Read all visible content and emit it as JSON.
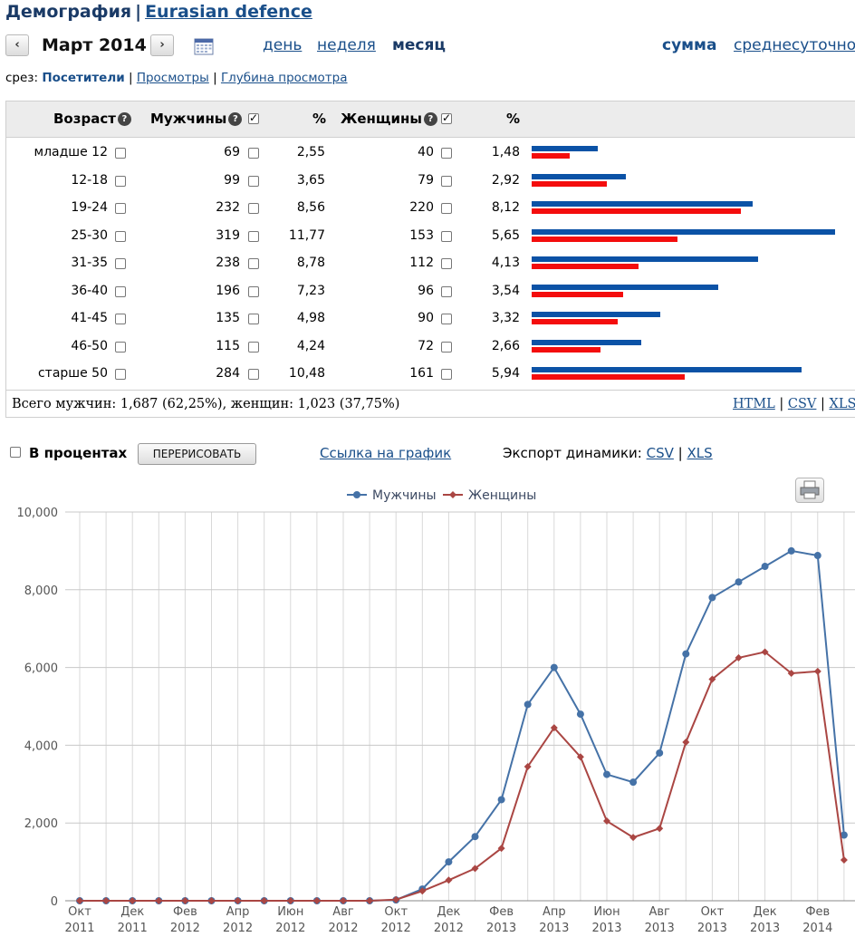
{
  "header": {
    "section": "Демография",
    "separator": "|",
    "site": "Eurasian defence"
  },
  "period": {
    "prev_label": "‹",
    "next_label": "›",
    "label": "Март 2014",
    "granularity": [
      "день",
      "неделя",
      "месяц"
    ],
    "active_granularity": "месяц",
    "modes": [
      "сумма",
      "среднесуточно"
    ],
    "active_mode": "сумма"
  },
  "slice": {
    "label": "срез:",
    "current": "Посетители",
    "links": [
      "Просмотры",
      "Глубина просмотра"
    ],
    "sep": "|"
  },
  "table": {
    "headers": {
      "age": "Возраст",
      "men": "Мужчины",
      "men_pct": "%",
      "women": "Женщины",
      "women_pct": "%"
    },
    "rows": [
      {
        "age": "младше 12",
        "men": "69",
        "men_pct": "2,55",
        "women": "40",
        "women_pct": "1,48"
      },
      {
        "age": "12-18",
        "men": "99",
        "men_pct": "3,65",
        "women": "79",
        "women_pct": "2,92"
      },
      {
        "age": "19-24",
        "men": "232",
        "men_pct": "8,56",
        "women": "220",
        "women_pct": "8,12"
      },
      {
        "age": "25-30",
        "men": "319",
        "men_pct": "11,77",
        "women": "153",
        "women_pct": "5,65"
      },
      {
        "age": "31-35",
        "men": "238",
        "men_pct": "8,78",
        "women": "112",
        "women_pct": "4,13"
      },
      {
        "age": "36-40",
        "men": "196",
        "men_pct": "7,23",
        "women": "96",
        "women_pct": "3,54"
      },
      {
        "age": "41-45",
        "men": "135",
        "men_pct": "4,98",
        "women": "90",
        "women_pct": "3,32"
      },
      {
        "age": "46-50",
        "men": "115",
        "men_pct": "4,24",
        "women": "72",
        "women_pct": "2,66"
      },
      {
        "age": "старше 50",
        "men": "284",
        "men_pct": "10,48",
        "women": "161",
        "women_pct": "5,94"
      }
    ],
    "totals": "Всего мужчин: 1,687 (62,25%), женщин: 1,023 (37,75%)",
    "exports": [
      "HTML",
      "CSV",
      "XLS"
    ],
    "sep": "|"
  },
  "controls": {
    "percent_label": "В процентах",
    "redraw_label": "ПЕРЕРИСОВАТЬ",
    "chart_link_label": "Ссылка на график",
    "export_label": "Экспорт динамики:",
    "export_links": [
      "CSV",
      "XLS"
    ],
    "sep": "|"
  },
  "colors": {
    "men_bar": "#0b52a6",
    "women_bar": "#f40d0d",
    "men_line": "#4572a7",
    "women_line": "#aa4643"
  },
  "chart_data": {
    "type": "line",
    "legend_position": "top-center",
    "grid": true,
    "ylim": [
      0,
      10000
    ],
    "yticks": [
      "0",
      "2,000",
      "4,000",
      "6,000",
      "8,000",
      "10,000"
    ],
    "xtick_labels": [
      [
        "Окт",
        "2011"
      ],
      [
        "Дек",
        "2011"
      ],
      [
        "Фев",
        "2012"
      ],
      [
        "Апр",
        "2012"
      ],
      [
        "Июн",
        "2012"
      ],
      [
        "Авг",
        "2012"
      ],
      [
        "Окт",
        "2012"
      ],
      [
        "Дек",
        "2012"
      ],
      [
        "Фев",
        "2013"
      ],
      [
        "Апр",
        "2013"
      ],
      [
        "Июн",
        "2013"
      ],
      [
        "Авг",
        "2013"
      ],
      [
        "Окт",
        "2013"
      ],
      [
        "Дек",
        "2013"
      ],
      [
        "Фев",
        "2014"
      ]
    ],
    "x": [
      "2011-10",
      "2011-11",
      "2011-12",
      "2012-01",
      "2012-02",
      "2012-03",
      "2012-04",
      "2012-05",
      "2012-06",
      "2012-07",
      "2012-08",
      "2012-09",
      "2012-10",
      "2012-11",
      "2012-12",
      "2013-01",
      "2013-02",
      "2013-03",
      "2013-04",
      "2013-05",
      "2013-06",
      "2013-07",
      "2013-08",
      "2013-09",
      "2013-10",
      "2013-11",
      "2013-12",
      "2014-01",
      "2014-02",
      "2014-03"
    ],
    "series": [
      {
        "name": "Мужчины",
        "values": [
          0,
          0,
          0,
          0,
          0,
          0,
          0,
          0,
          0,
          0,
          0,
          0,
          20,
          300,
          1000,
          1650,
          2600,
          5050,
          6000,
          4800,
          3250,
          3050,
          3800,
          6350,
          7800,
          8200,
          8600,
          9000,
          8880,
          1690
        ]
      },
      {
        "name": "Женщины",
        "values": [
          0,
          0,
          0,
          0,
          0,
          0,
          0,
          0,
          0,
          0,
          0,
          0,
          30,
          250,
          530,
          830,
          1350,
          3450,
          4450,
          3700,
          2050,
          1630,
          1860,
          4080,
          5700,
          6250,
          6400,
          5850,
          5900,
          1050
        ]
      }
    ]
  }
}
